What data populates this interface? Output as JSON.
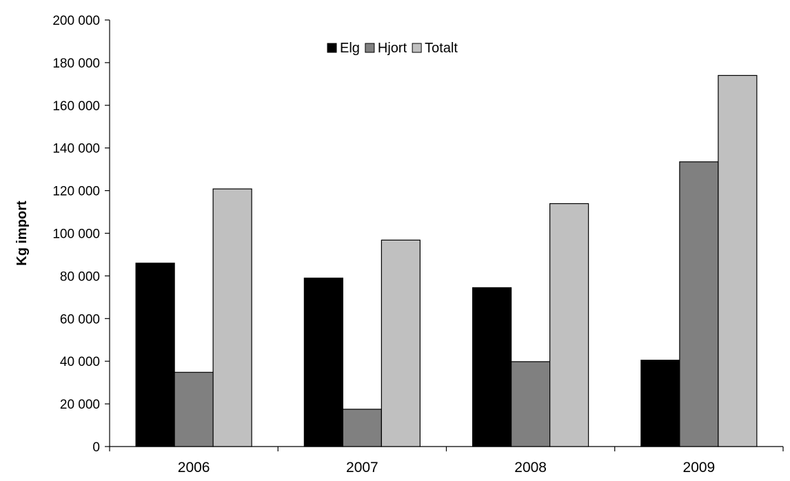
{
  "chart_data": {
    "type": "bar",
    "title": "",
    "xlabel": "",
    "ylabel": "Kg import",
    "categories": [
      "2006",
      "2007",
      "2008",
      "2009"
    ],
    "series": [
      {
        "name": "Elg",
        "color": "#000000",
        "values": [
          86000,
          79000,
          74500,
          40500
        ]
      },
      {
        "name": "Hjort",
        "color": "#808080",
        "values": [
          34800,
          17500,
          39800,
          133500
        ]
      },
      {
        "name": "Totalt",
        "color": "#c0c0c0",
        "values": [
          120800,
          96800,
          113900,
          174000
        ]
      }
    ],
    "ylim": [
      0,
      200000
    ],
    "y_ticks": [
      0,
      20000,
      40000,
      60000,
      80000,
      100000,
      120000,
      140000,
      160000,
      180000,
      200000
    ],
    "y_tick_labels": [
      "0",
      "20 000",
      "40 000",
      "60 000",
      "80 000",
      "100 000",
      "120 000",
      "140 000",
      "160 000",
      "180 000",
      "200 000"
    ],
    "grid": false,
    "legend_position": "top-center"
  }
}
